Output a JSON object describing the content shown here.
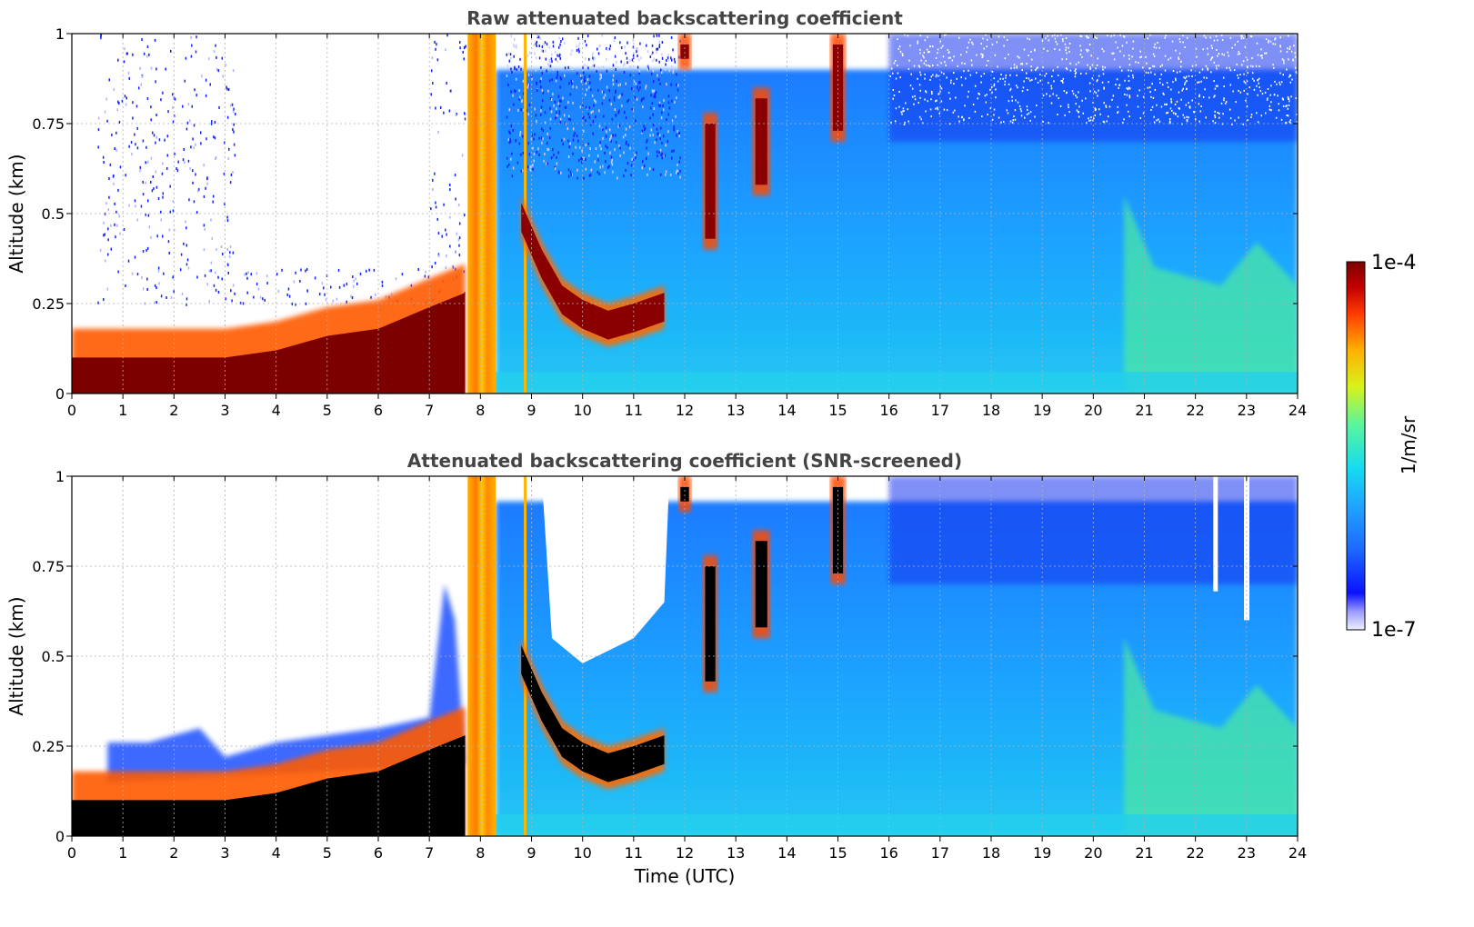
{
  "chart_data": [
    {
      "type": "heatmap",
      "title": "Raw attenuated backscattering coefficient",
      "xlabel": "",
      "ylabel": "Altitude (km)",
      "xlim": [
        0,
        24
      ],
      "ylim": [
        0,
        1
      ],
      "x_ticks": [
        "0",
        "1",
        "2",
        "3",
        "4",
        "5",
        "6",
        "7",
        "8",
        "9",
        "10",
        "11",
        "12",
        "13",
        "14",
        "15",
        "16",
        "17",
        "18",
        "19",
        "20",
        "21",
        "22",
        "23",
        "24"
      ],
      "y_ticks": [
        "0",
        "0.25",
        "0.5",
        "0.75",
        "1"
      ],
      "grid": true,
      "colormap": "jet",
      "screened": false,
      "features": {
        "boundary_layer": [
          [
            0,
            0.1
          ],
          [
            1,
            0.1
          ],
          [
            2,
            0.1
          ],
          [
            3,
            0.1
          ],
          [
            4,
            0.12
          ],
          [
            5,
            0.16
          ],
          [
            6,
            0.18
          ],
          [
            7,
            0.24
          ],
          [
            7.7,
            0.28
          ]
        ],
        "vertical_band_hours": [
          7.75,
          8.3
        ],
        "thin_line_hour": 8.85,
        "cloud_layer": [
          [
            8.8,
            0.55
          ],
          [
            9.2,
            0.42
          ],
          [
            9.6,
            0.32
          ],
          [
            10,
            0.28
          ],
          [
            10.5,
            0.25
          ],
          [
            11,
            0.27
          ],
          [
            11.6,
            0.3
          ]
        ],
        "high_clouds": [
          [
            12.0,
            1.0
          ],
          [
            12.6,
            0.5
          ],
          [
            13.5,
            0.75
          ],
          [
            15,
            0.88
          ]
        ]
      }
    },
    {
      "type": "heatmap",
      "title": "Attenuated backscattering coefficient (SNR-screened)",
      "xlabel": "Time (UTC)",
      "ylabel": "Altitude (km)",
      "xlim": [
        0,
        24
      ],
      "ylim": [
        0,
        1
      ],
      "x_ticks": [
        "0",
        "1",
        "2",
        "3",
        "4",
        "5",
        "6",
        "7",
        "8",
        "9",
        "10",
        "11",
        "12",
        "13",
        "14",
        "15",
        "16",
        "17",
        "18",
        "19",
        "20",
        "21",
        "22",
        "23",
        "24"
      ],
      "y_ticks": [
        "0",
        "0.25",
        "0.5",
        "0.75",
        "1"
      ],
      "grid": true,
      "colormap": "jet",
      "screened": true
    }
  ],
  "colorbar": {
    "label": "1/m/sr",
    "max_label": "1e-4",
    "min_label": "1e-7",
    "scale": "log",
    "min": 1e-07,
    "max": 0.0001
  }
}
